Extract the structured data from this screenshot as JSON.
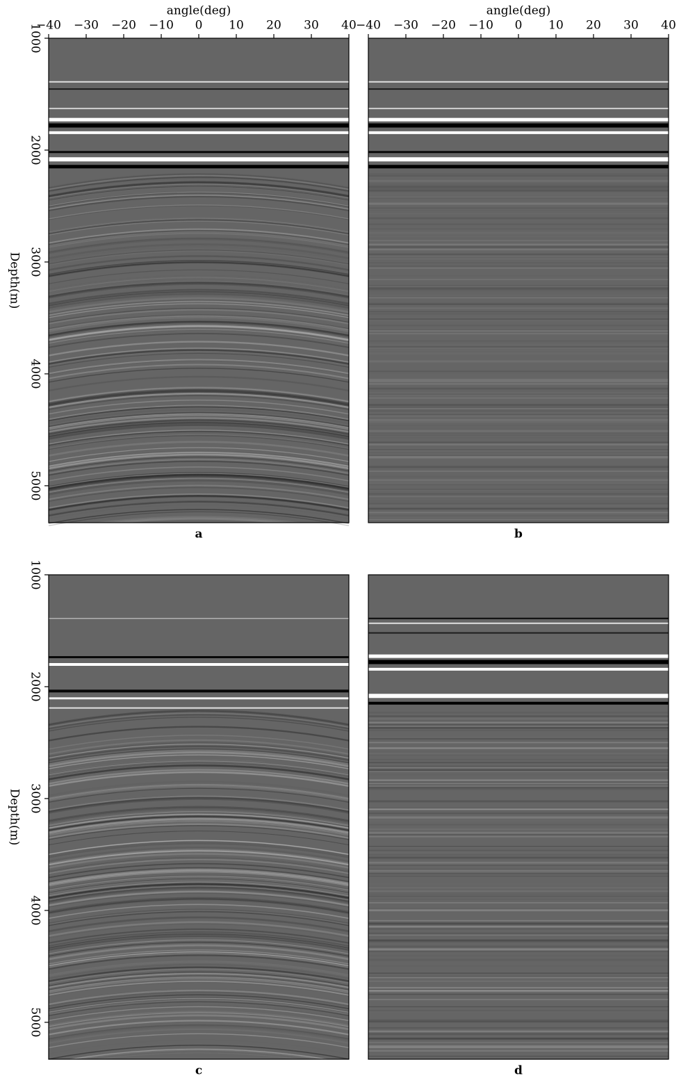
{
  "chart_data": [
    {
      "type": "image",
      "caption": "a",
      "xlabel": "angle(deg)",
      "ylabel": "Depth(m)",
      "y_inverted": true,
      "xlim": [
        -40,
        40
      ],
      "xticks": [
        {
          "value": -40,
          "label": "−40"
        },
        {
          "value": -30,
          "label": "−30"
        },
        {
          "value": -20,
          "label": "−20"
        },
        {
          "value": -10,
          "label": "−10"
        },
        0,
        10,
        20,
        30,
        40
      ],
      "ylim": [
        1000,
        5330
      ],
      "yticks": [
        1000,
        2000,
        3000,
        4000,
        5000
      ]
    },
    {
      "type": "image",
      "caption": "b",
      "xlabel": "angle(deg)",
      "y_inverted": true,
      "xlim": [
        -40,
        40
      ],
      "xticks": [
        {
          "value": -40,
          "label": "−40"
        },
        {
          "value": -30,
          "label": "−30"
        },
        {
          "value": -20,
          "label": "−20"
        },
        {
          "value": -10,
          "label": "−10"
        },
        0,
        10,
        20,
        30,
        40
      ],
      "ylim": [
        1000,
        5330
      ]
    },
    {
      "type": "image",
      "caption": "c",
      "ylabel": "Depth(m)",
      "y_inverted": true,
      "xlim": [
        -40,
        40
      ],
      "ylim": [
        1000,
        5330
      ],
      "yticks": [
        1000,
        2000,
        3000,
        4000,
        5000
      ]
    },
    {
      "type": "image",
      "caption": "d",
      "y_inverted": true,
      "xlim": [
        -40,
        40
      ],
      "ylim": [
        1000,
        5330
      ]
    }
  ]
}
